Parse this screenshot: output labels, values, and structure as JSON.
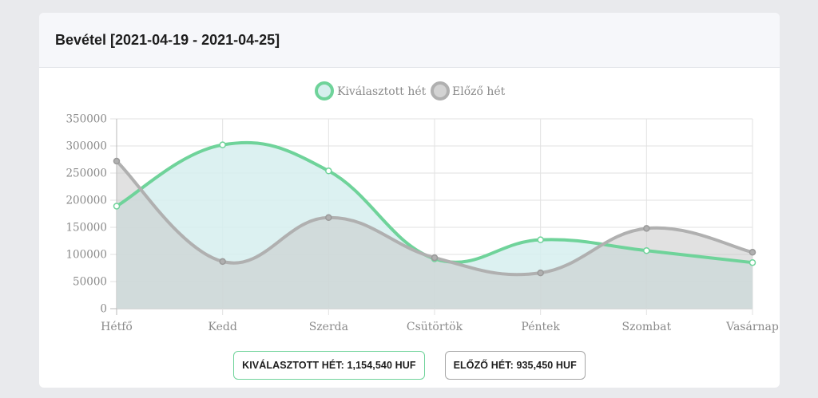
{
  "card": {
    "title": "Bevétel [2021-04-19 - 2021-04-25]"
  },
  "chart_data": {
    "type": "area",
    "categories": [
      "Hétfő",
      "Kedd",
      "Szerda",
      "Csütörtök",
      "Péntek",
      "Szombat",
      "Vasárnap"
    ],
    "y_ticks": [
      "0",
      "50000",
      "100000",
      "150000",
      "200000",
      "250000",
      "300000",
      "350000"
    ],
    "ylim": [
      0,
      350000
    ],
    "grid": true,
    "legend_position": "top-center",
    "series": [
      {
        "name": "Kiválasztott hét",
        "values": [
          189000,
          302000,
          254000,
          92000,
          127000,
          107000,
          85000
        ],
        "line_color": "#6fd39a",
        "fill_color": "#d6efee"
      },
      {
        "name": "Előző hét",
        "values": [
          272000,
          87000,
          168000,
          94000,
          66000,
          148000,
          104000
        ],
        "line_color": "#b0b0b0",
        "fill_color": "#c9c9c9"
      }
    ]
  },
  "totals": {
    "current": "KIVÁLASZTOTT HÉT: 1,154,540 HUF",
    "previous": "ELŐZŐ HÉT: 935,450 HUF"
  }
}
